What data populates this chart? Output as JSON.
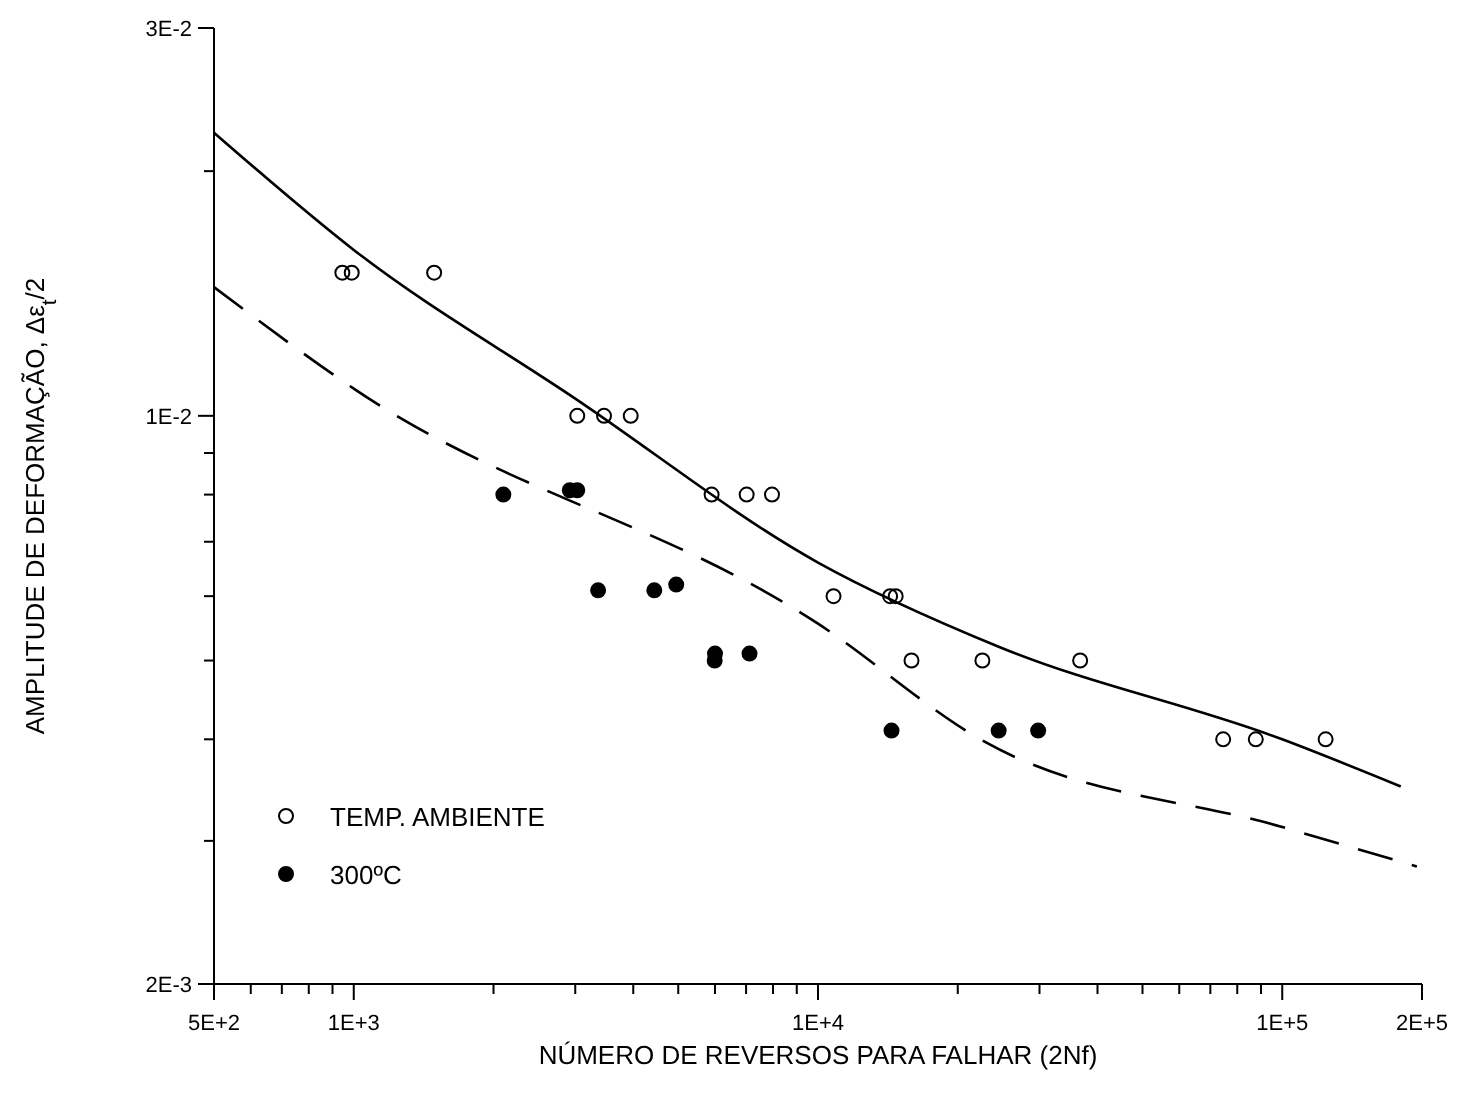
{
  "chart_data": {
    "type": "scatter",
    "xlabel": "NÚMERO DE REVERSOS PARA FALHAR (2Nf)",
    "ylabel": "AMPLITUDE DE DEFORMAÇÃO,  Δε$_{t}$/2",
    "log": "xy",
    "grid": false,
    "legend": "bottom left",
    "marker": "circle",
    "xlim": [
      500,
      200000
    ],
    "ylim": [
      0.002,
      0.03
    ],
    "xticks": [
      {
        "value": 500,
        "label": "5E+2"
      },
      {
        "value": 600,
        "label": null
      },
      {
        "value": 700,
        "label": null
      },
      {
        "value": 800,
        "label": null
      },
      {
        "value": 900,
        "label": null
      },
      {
        "value": 1000,
        "label": "1E+3"
      },
      {
        "value": 2000,
        "label": null
      },
      {
        "value": 3000,
        "label": null
      },
      {
        "value": 4000,
        "label": null
      },
      {
        "value": 5000,
        "label": null
      },
      {
        "value": 6000,
        "label": null
      },
      {
        "value": 7000,
        "label": null
      },
      {
        "value": 8000,
        "label": null
      },
      {
        "value": 9000,
        "label": null
      },
      {
        "value": 10000,
        "label": "1E+4"
      },
      {
        "value": 20000,
        "label": null
      },
      {
        "value": 30000,
        "label": null
      },
      {
        "value": 40000,
        "label": null
      },
      {
        "value": 50000,
        "label": null
      },
      {
        "value": 60000,
        "label": null
      },
      {
        "value": 70000,
        "label": null
      },
      {
        "value": 80000,
        "label": null
      },
      {
        "value": 90000,
        "label": null
      },
      {
        "value": 100000,
        "label": "1E+5"
      },
      {
        "value": 200000,
        "label": "2E+5"
      }
    ],
    "yticks": [
      {
        "value": 0.002,
        "label": "2E-3"
      },
      {
        "value": 0.003,
        "label": null
      },
      {
        "value": 0.004,
        "label": null
      },
      {
        "value": 0.005,
        "label": null
      },
      {
        "value": 0.006,
        "label": null
      },
      {
        "value": 0.007,
        "label": null
      },
      {
        "value": 0.008,
        "label": null
      },
      {
        "value": 0.009,
        "label": null
      },
      {
        "value": 0.01,
        "label": "1E-2"
      },
      {
        "value": 0.02,
        "label": null
      },
      {
        "value": 0.03,
        "label": "3E-2"
      }
    ],
    "series": [
      {
        "name": "TEMP. AMBIENTE",
        "color": "#000000",
        "x": [
          945,
          990,
          1490,
          3030,
          3460,
          3950,
          5900,
          7020,
          7960,
          10800,
          14300,
          14700,
          15900,
          22600,
          36700,
          74600,
          87700,
          124000
        ],
        "values": [
          0.015,
          0.015,
          0.015,
          0.01,
          0.01,
          0.01,
          0.008,
          0.008,
          0.008,
          0.006,
          0.006,
          0.006,
          0.005,
          0.005,
          0.005,
          0.004,
          0.004,
          0.004
        ]
      },
      {
        "name": "300ºC",
        "color": "#000000",
        "x": [
          2100,
          2920,
          3030,
          3360,
          4440,
          4950,
          5990,
          6000,
          7120,
          14400,
          24500,
          29800
        ],
        "values": [
          0.008,
          0.0081,
          0.0081,
          0.0061,
          0.0061,
          0.0062,
          0.005,
          0.0051,
          0.0051,
          0.0041,
          0.0041,
          0.0041
        ]
      },
      {
        "type": "line",
        "marker": "none",
        "line_style": "solid",
        "color": "#000000",
        "x": [
          500,
          1000,
          3000,
          10000,
          24500,
          100000,
          180000
        ],
        "values": [
          0.0223,
          0.016,
          0.0105,
          0.0066,
          0.0052,
          0.004,
          0.0035
        ]
      },
      {
        "type": "line",
        "marker": "none",
        "line_style": "dashed",
        "color": "#000000",
        "x": [
          500,
          1000,
          10000,
          22900,
          100000,
          195000
        ],
        "values": [
          0.0144,
          0.0108,
          0.00555,
          0.00397,
          0.00312,
          0.00279
        ]
      }
    ]
  }
}
